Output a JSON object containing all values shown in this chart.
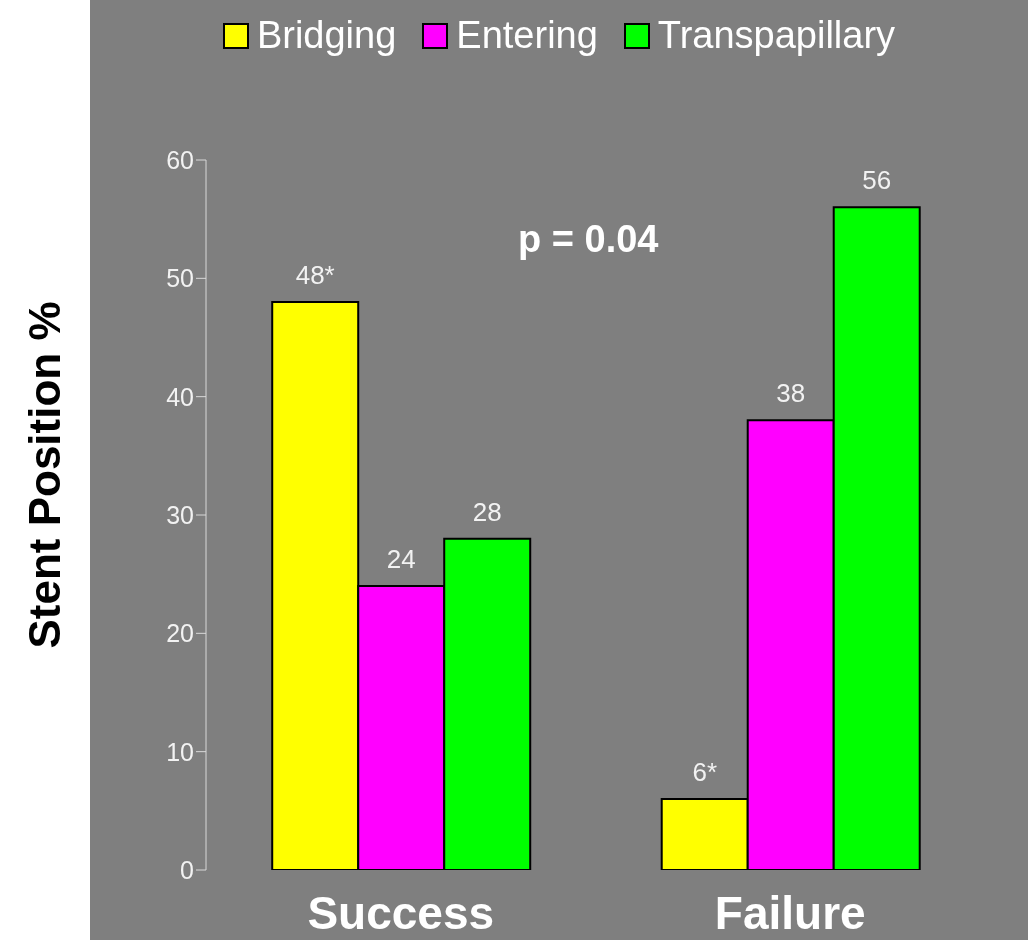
{
  "chart_data": {
    "type": "bar",
    "ylabel": "Stent Position %",
    "categories": [
      "Success",
      "Failure"
    ],
    "series": [
      {
        "name": "Bridging",
        "color": "#ffff00",
        "values": [
          48,
          6
        ],
        "value_labels": [
          "48*",
          "6*"
        ]
      },
      {
        "name": "Entering",
        "color": "#ff00ff",
        "values": [
          24,
          38
        ],
        "value_labels": [
          "24",
          "38"
        ]
      },
      {
        "name": "Transpapillary",
        "color": "#00ff00",
        "values": [
          28,
          56
        ],
        "value_labels": [
          "28",
          "56"
        ]
      }
    ],
    "ylim": [
      0,
      60
    ],
    "yticks": [
      0,
      10,
      20,
      30,
      40,
      50,
      60
    ],
    "grid": false,
    "legend": "top",
    "annotations": [
      "p = 0.04"
    ]
  }
}
